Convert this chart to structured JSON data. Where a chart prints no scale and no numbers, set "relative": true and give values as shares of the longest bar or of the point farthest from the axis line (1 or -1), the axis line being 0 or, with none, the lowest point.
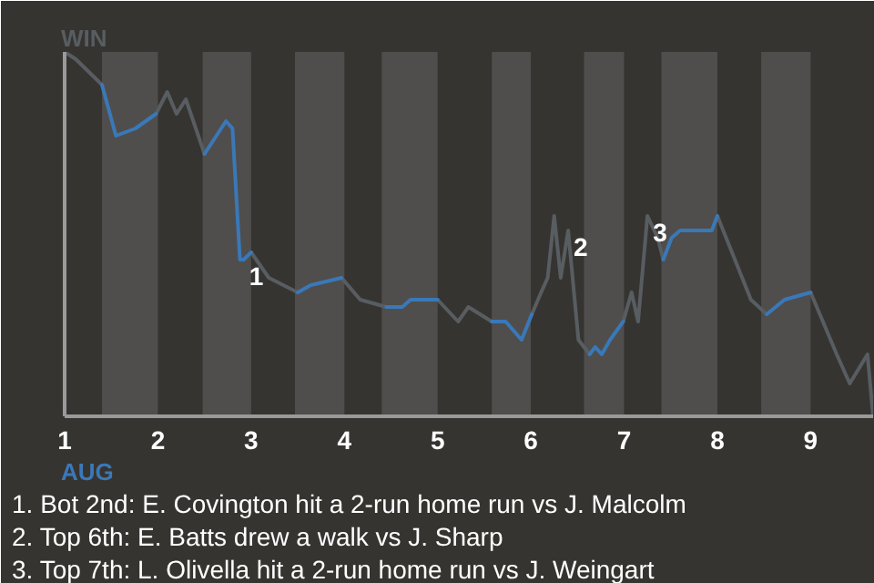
{
  "chart_data": {
    "type": "line",
    "relative": true,
    "x": [
      1.0,
      1.12,
      1.4,
      1.55,
      1.76,
      1.98,
      2.1,
      2.2,
      2.3,
      2.5,
      2.73,
      2.8,
      2.88,
      2.92,
      3.0,
      3.19,
      3.5,
      3.64,
      3.97,
      4.17,
      4.45,
      4.62,
      4.71,
      5.0,
      5.22,
      5.33,
      5.58,
      5.73,
      5.9,
      6.01,
      6.11,
      6.18,
      6.25,
      6.32,
      6.4,
      6.51,
      6.63,
      6.69,
      6.76,
      6.85,
      6.99,
      7.08,
      7.15,
      7.25,
      7.36,
      7.42,
      7.51,
      7.6,
      7.71,
      7.94,
      8.0,
      8.36,
      8.53,
      8.72,
      9.0,
      9.28,
      9.42,
      9.61,
      9.67
    ],
    "series": [
      {
        "name": "WIN",
        "color": "#585d62",
        "values": [
          1,
          0.98,
          0.91,
          null,
          null,
          0.83,
          0.89,
          0.83,
          0.87,
          0.72,
          null,
          null,
          null,
          null,
          0.45,
          0.38,
          0.34,
          null,
          0.38,
          0.32,
          0.3,
          null,
          null,
          0.32,
          0.26,
          0.3,
          0.26,
          null,
          null,
          0.28,
          0.34,
          0.38,
          0.55,
          0.38,
          0.51,
          0.21,
          0.17,
          null,
          null,
          null,
          0.26,
          0.34,
          0.26,
          0.55,
          0.49,
          0.43,
          null,
          null,
          null,
          null,
          0.55,
          0.32,
          0.28,
          null,
          0.34,
          0.17,
          0.09,
          0.17,
          0
        ]
      },
      {
        "name": "AUG",
        "color": "#3a78b8",
        "values": [
          null,
          null,
          0.91,
          0.77,
          0.79,
          0.83,
          null,
          null,
          null,
          0.72,
          0.81,
          0.79,
          0.43,
          0.43,
          0.45,
          null,
          0.34,
          0.36,
          0.38,
          null,
          0.3,
          0.3,
          0.32,
          0.32,
          null,
          null,
          0.26,
          0.26,
          0.21,
          0.28,
          null,
          null,
          null,
          null,
          null,
          null,
          0.17,
          0.19,
          0.17,
          0.21,
          0.26,
          null,
          null,
          null,
          null,
          0.43,
          0.49,
          0.51,
          0.51,
          0.51,
          0.55,
          null,
          0.28,
          0.32,
          0.34,
          null,
          null,
          null,
          null
        ]
      }
    ],
    "xlim": [
      1,
      9.67
    ],
    "xticks": [
      1,
      2,
      3,
      4,
      5,
      6,
      7,
      8,
      9
    ],
    "bands": [
      {
        "axis": "x",
        "from": 1.4,
        "to": 2.0,
        "color": "#4f4e4c"
      },
      {
        "axis": "x",
        "from": 2.48,
        "to": 3.0,
        "color": "#4f4e4c"
      },
      {
        "axis": "x",
        "from": 3.47,
        "to": 4.0,
        "color": "#4f4e4c"
      },
      {
        "axis": "x",
        "from": 4.4,
        "to": 5.0,
        "color": "#4f4e4c"
      },
      {
        "axis": "x",
        "from": 5.58,
        "to": 6.0,
        "color": "#4f4e4c"
      },
      {
        "axis": "x",
        "from": 6.57,
        "to": 7.0,
        "color": "#4f4e4c"
      },
      {
        "axis": "x",
        "from": 7.4,
        "to": 8.0,
        "color": "#4f4e4c"
      },
      {
        "axis": "x",
        "from": 8.47,
        "to": 9.0,
        "color": "#4f4e4c"
      }
    ],
    "annotations": [
      {
        "text": "1",
        "x": 2.92,
        "y": 0.43
      },
      {
        "text": "2",
        "x": 6.4,
        "y": 0.51
      },
      {
        "text": "3",
        "x": 7.25,
        "y": 0.55
      },
      "1. Bot 2nd: E. Covington hit a 2-run home run vs J. Malcolm",
      "2. Top 6th: E. Batts drew a walk vs J. Sharp",
      "3. Top 7th: L. Olivella hit a 2-run home run vs J. Weingart"
    ]
  }
}
